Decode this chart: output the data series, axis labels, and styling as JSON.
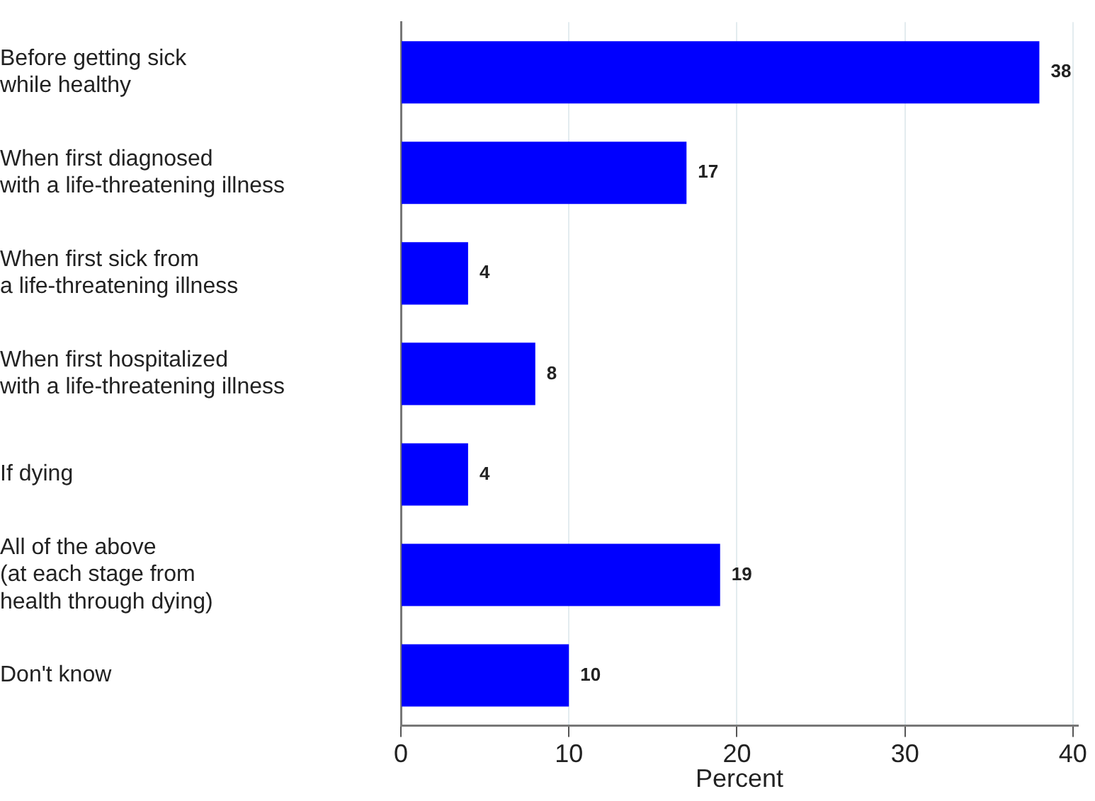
{
  "chart_data": {
    "type": "bar",
    "orientation": "horizontal",
    "xlabel": "Percent",
    "categories": [
      "Before getting sick\nwhile healthy",
      "When first diagnosed\nwith a life-threatening illness",
      "When first sick from\na life-threatening illness",
      "When first hospitalized\nwith a life-threatening illness",
      "If dying",
      "All of the above\n(at each stage from\nhealth through dying)",
      "Don't know"
    ],
    "values": [
      38,
      17,
      4,
      8,
      4,
      19,
      10
    ],
    "color": "#0000ff",
    "data_labels": true,
    "xlim": [
      0,
      40.3
    ],
    "xticks": [
      0,
      10,
      20,
      30,
      40
    ],
    "grid": "x",
    "legend": false
  }
}
